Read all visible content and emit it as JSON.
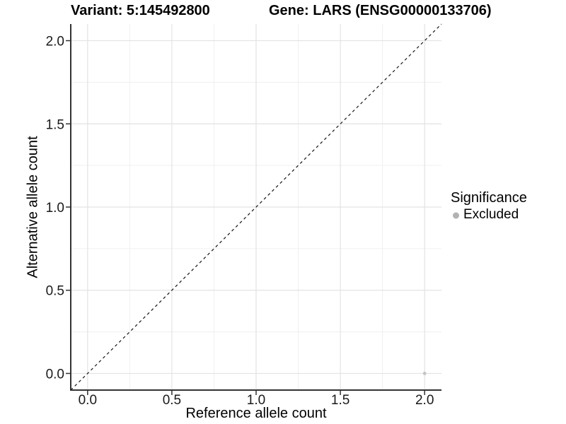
{
  "titles": {
    "variant": "Variant: 5:145492800",
    "gene": "Gene: LARS (ENSG00000133706)"
  },
  "chart_data": {
    "type": "scatter",
    "xlabel": "Reference allele count",
    "ylabel": "Alternative allele count",
    "xlim": [
      -0.1,
      2.1
    ],
    "ylim": [
      -0.1,
      2.1
    ],
    "x_ticks": [
      0.0,
      0.5,
      1.0,
      1.5,
      2.0
    ],
    "x_tick_labels": [
      "0.0",
      "0.5",
      "1.0",
      "1.5",
      "2.0"
    ],
    "y_ticks": [
      0.0,
      0.5,
      1.0,
      1.5,
      2.0
    ],
    "y_tick_labels": [
      "0.0",
      "0.5",
      "1.0",
      "1.5",
      "2.0"
    ],
    "x_minor_ticks": [
      0.25,
      0.75,
      1.25,
      1.75
    ],
    "y_minor_ticks": [
      0.25,
      0.75,
      1.25,
      1.75
    ],
    "grid": true,
    "points": [
      {
        "x": 2.0,
        "y": 0.0,
        "series": "Excluded"
      }
    ],
    "reference_line": {
      "type": "identity",
      "from": -0.1,
      "to": 2.1,
      "style": "dashed"
    },
    "legend": {
      "title": "Significance",
      "position": "right",
      "items": [
        {
          "label": "Excluded",
          "color": "#b2b2b2"
        }
      ]
    },
    "colors": {
      "point": "#c4c4c4",
      "grid_major": "#e3e3e3",
      "grid_minor": "#f0f0f0",
      "axis": "#333333",
      "tick_text": "#1a1a1a",
      "dashed_line": "#141414"
    }
  }
}
